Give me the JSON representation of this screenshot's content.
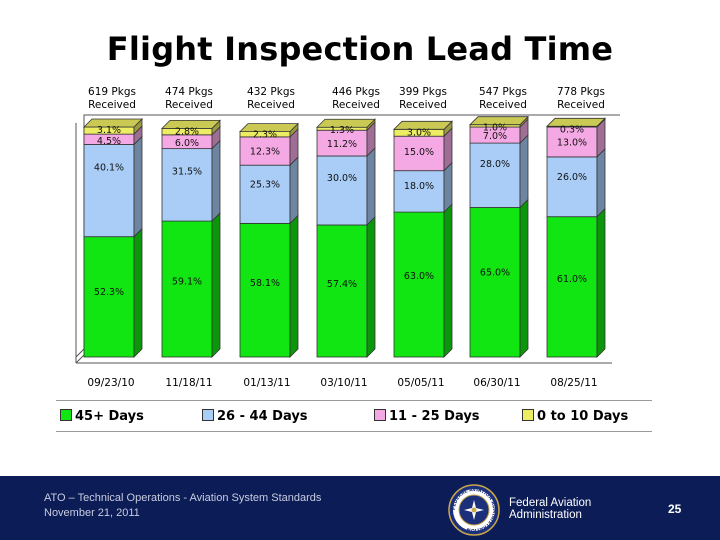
{
  "slide": {
    "title": "Flight Inspection Lead Time",
    "footer_line1": "ATO – Technical Operations - Aviation System Standards",
    "footer_line2": "November 21, 2011",
    "agency_line1": "Federal Aviation",
    "agency_line2": "Administration",
    "page_number": "25",
    "seal_text": "FEDERAL AVIATION ADMINISTRATION"
  },
  "colors": {
    "green": "#12e612",
    "blue": "#a9cdf7",
    "pink": "#f5a9e4",
    "yellow": "#eded63",
    "footer": "#0c1c56"
  },
  "chart_data": {
    "type": "bar",
    "stacked": true,
    "percent": true,
    "title": "Flight Inspection Lead Time",
    "categories": [
      "09/23/10",
      "11/18/11",
      "01/13/11",
      "03/10/11",
      "05/05/11",
      "06/30/11",
      "08/25/11"
    ],
    "package_labels": [
      [
        "619 Pkgs",
        "Received"
      ],
      [
        "474 Pkgs",
        "Received"
      ],
      [
        "432 Pkgs",
        "Received"
      ],
      [
        "446 Pkgs",
        "Received"
      ],
      [
        "399 Pkgs",
        "Received"
      ],
      [
        "547 Pkgs",
        "Received"
      ],
      [
        "778 Pkgs",
        "Received"
      ]
    ],
    "series": [
      {
        "name": "45+ Days",
        "color": "#12e612",
        "values": [
          52.3,
          59.1,
          58.1,
          57.4,
          63.0,
          65.0,
          61.0
        ],
        "labels": [
          "52.3%",
          "59.1%",
          "58.1%",
          "57.4%",
          "63.0%",
          "65.0%",
          "61.0%"
        ]
      },
      {
        "name": "26 - 44 Days",
        "color": "#a9cdf7",
        "values": [
          40.1,
          31.5,
          25.3,
          30.0,
          18.0,
          28.0,
          26.0
        ],
        "labels": [
          "40.1%",
          "31.5%",
          "25.3%",
          "30.0%",
          "18.0%",
          "28.0%",
          "26.0%"
        ]
      },
      {
        "name": "11 - 25 Days",
        "color": "#f5a9e4",
        "values": [
          4.5,
          6.0,
          12.3,
          11.2,
          15.0,
          7.0,
          13.0
        ],
        "labels": [
          "4.5%",
          "6.0%",
          "12.3%",
          "11.2%",
          "15.0%",
          "7.0%",
          "13.0%"
        ]
      },
      {
        "name": "0 to 10 Days",
        "color": "#eded63",
        "values": [
          3.1,
          2.8,
          2.3,
          1.3,
          3.0,
          1.0,
          0.3
        ],
        "labels": [
          "3.1%",
          "2.8%",
          "2.3%",
          "1.3%",
          "3.0%",
          "1.0%",
          "0.3%"
        ]
      }
    ],
    "ylim": [
      0,
      100
    ],
    "legend_position": "bottom"
  }
}
